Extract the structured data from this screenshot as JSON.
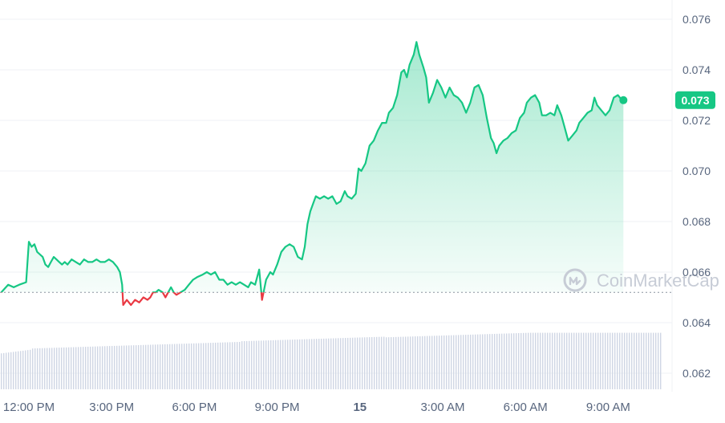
{
  "watermark": {
    "text": "CoinMarketCap",
    "icon": "coinmarketcap-logo-icon"
  },
  "current_price_label": "0.073",
  "colors": {
    "up": "#16c784",
    "down": "#ea3943",
    "grid": "#eff2f5",
    "axis_text": "#58667e",
    "volume": "#cfd6e4",
    "baseline": "#8a939f",
    "watermark": "#c7ccd6"
  },
  "chart_data": {
    "type": "area",
    "y_axis": {
      "ticks": [
        0.062,
        0.064,
        0.066,
        0.068,
        0.07,
        0.072,
        0.074,
        0.076
      ],
      "tick_labels": [
        "0.062",
        "0.064",
        "0.066",
        "0.068",
        "0.070",
        "0.072",
        "0.074",
        "0.076"
      ],
      "range": [
        0.0618,
        0.0772
      ],
      "position": "right"
    },
    "x_axis": {
      "range": [
        0,
        22.3
      ],
      "units": "hours since 12:00 PM",
      "ticks": [
        {
          "h": 0,
          "label": "12:00 PM",
          "bold": false
        },
        {
          "h": 3,
          "label": "3:00 PM",
          "bold": false
        },
        {
          "h": 6,
          "label": "6:00 PM",
          "bold": false
        },
        {
          "h": 9,
          "label": "9:00 PM",
          "bold": false
        },
        {
          "h": 12,
          "label": "15",
          "bold": true
        },
        {
          "h": 15,
          "label": "3:00 AM",
          "bold": false
        },
        {
          "h": 18,
          "label": "6:00 AM",
          "bold": false
        },
        {
          "h": 21,
          "label": "9:00 AM",
          "bold": false
        }
      ]
    },
    "baseline": 0.0652,
    "grid": true,
    "last_price": 0.0728,
    "series": [
      {
        "values": [
          [
            -1.0,
            0.0652
          ],
          [
            -0.75,
            0.0655
          ],
          [
            -0.55,
            0.0654
          ],
          [
            -0.35,
            0.0655
          ],
          [
            -0.1,
            0.0656
          ],
          [
            0.0,
            0.0672
          ],
          [
            0.1,
            0.067
          ],
          [
            0.2,
            0.0671
          ],
          [
            0.3,
            0.0668
          ],
          [
            0.4,
            0.0667
          ],
          [
            0.5,
            0.0666
          ],
          [
            0.6,
            0.0663
          ],
          [
            0.7,
            0.0662
          ],
          [
            0.8,
            0.0664
          ],
          [
            0.9,
            0.0666
          ],
          [
            1.0,
            0.0665
          ],
          [
            1.1,
            0.0664
          ],
          [
            1.2,
            0.0663
          ],
          [
            1.3,
            0.0664
          ],
          [
            1.4,
            0.0663
          ],
          [
            1.55,
            0.0665
          ],
          [
            1.7,
            0.0664
          ],
          [
            1.85,
            0.0663
          ],
          [
            2.0,
            0.0665
          ],
          [
            2.15,
            0.0664
          ],
          [
            2.3,
            0.0664
          ],
          [
            2.45,
            0.0665
          ],
          [
            2.6,
            0.0664
          ],
          [
            2.75,
            0.0664
          ],
          [
            2.9,
            0.0665
          ],
          [
            3.05,
            0.0664
          ],
          [
            3.2,
            0.0662
          ],
          [
            3.3,
            0.066
          ],
          [
            3.38,
            0.0655
          ],
          [
            3.42,
            0.0647
          ],
          [
            3.55,
            0.0649
          ],
          [
            3.7,
            0.0647
          ],
          [
            3.85,
            0.0649
          ],
          [
            4.0,
            0.0648
          ],
          [
            4.15,
            0.065
          ],
          [
            4.3,
            0.0649
          ],
          [
            4.4,
            0.065
          ],
          [
            4.5,
            0.0652
          ],
          [
            4.6,
            0.0652
          ],
          [
            4.7,
            0.0653
          ],
          [
            4.85,
            0.0652
          ],
          [
            4.95,
            0.065
          ],
          [
            5.0,
            0.0651
          ],
          [
            5.15,
            0.0654
          ],
          [
            5.25,
            0.0652
          ],
          [
            5.35,
            0.0651
          ],
          [
            5.5,
            0.0652
          ],
          [
            5.65,
            0.0653
          ],
          [
            5.8,
            0.0655
          ],
          [
            5.95,
            0.0657
          ],
          [
            6.1,
            0.0658
          ],
          [
            6.3,
            0.0659
          ],
          [
            6.45,
            0.066
          ],
          [
            6.6,
            0.0659
          ],
          [
            6.75,
            0.066
          ],
          [
            6.9,
            0.0657
          ],
          [
            7.05,
            0.0657
          ],
          [
            7.2,
            0.0655
          ],
          [
            7.35,
            0.0656
          ],
          [
            7.5,
            0.0655
          ],
          [
            7.65,
            0.0656
          ],
          [
            7.8,
            0.0655
          ],
          [
            7.95,
            0.0654
          ],
          [
            8.05,
            0.0656
          ],
          [
            8.2,
            0.0655
          ],
          [
            8.35,
            0.0661
          ],
          [
            8.45,
            0.0649
          ],
          [
            8.6,
            0.0657
          ],
          [
            8.75,
            0.066
          ],
          [
            8.85,
            0.0659
          ],
          [
            9.0,
            0.0663
          ],
          [
            9.15,
            0.0668
          ],
          [
            9.3,
            0.067
          ],
          [
            9.45,
            0.0671
          ],
          [
            9.6,
            0.067
          ],
          [
            9.75,
            0.0666
          ],
          [
            9.9,
            0.0665
          ],
          [
            10.0,
            0.067
          ],
          [
            10.1,
            0.0679
          ],
          [
            10.2,
            0.0684
          ],
          [
            10.3,
            0.0687
          ],
          [
            10.4,
            0.069
          ],
          [
            10.55,
            0.0689
          ],
          [
            10.7,
            0.069
          ],
          [
            10.85,
            0.0689
          ],
          [
            11.0,
            0.069
          ],
          [
            11.15,
            0.0687
          ],
          [
            11.3,
            0.0688
          ],
          [
            11.45,
            0.0692
          ],
          [
            11.55,
            0.069
          ],
          [
            11.7,
            0.0689
          ],
          [
            11.85,
            0.0691
          ],
          [
            11.95,
            0.0701
          ],
          [
            12.05,
            0.07
          ],
          [
            12.2,
            0.0703
          ],
          [
            12.35,
            0.071
          ],
          [
            12.5,
            0.0712
          ],
          [
            12.65,
            0.0716
          ],
          [
            12.8,
            0.0719
          ],
          [
            12.95,
            0.0719
          ],
          [
            13.05,
            0.0723
          ],
          [
            13.2,
            0.0725
          ],
          [
            13.35,
            0.073
          ],
          [
            13.5,
            0.0739
          ],
          [
            13.6,
            0.074
          ],
          [
            13.7,
            0.0737
          ],
          [
            13.8,
            0.0742
          ],
          [
            13.95,
            0.0746
          ],
          [
            14.05,
            0.0751
          ],
          [
            14.15,
            0.0746
          ],
          [
            14.3,
            0.0741
          ],
          [
            14.4,
            0.0737
          ],
          [
            14.5,
            0.0727
          ],
          [
            14.65,
            0.0731
          ],
          [
            14.8,
            0.0736
          ],
          [
            14.95,
            0.0733
          ],
          [
            15.1,
            0.0729
          ],
          [
            15.25,
            0.0733
          ],
          [
            15.4,
            0.073
          ],
          [
            15.55,
            0.0729
          ],
          [
            15.7,
            0.0727
          ],
          [
            15.85,
            0.0723
          ],
          [
            16.0,
            0.0727
          ],
          [
            16.15,
            0.0733
          ],
          [
            16.3,
            0.0734
          ],
          [
            16.45,
            0.073
          ],
          [
            16.6,
            0.0721
          ],
          [
            16.75,
            0.0713
          ],
          [
            16.85,
            0.0711
          ],
          [
            16.95,
            0.0707
          ],
          [
            17.05,
            0.071
          ],
          [
            17.2,
            0.0712
          ],
          [
            17.35,
            0.0713
          ],
          [
            17.5,
            0.0715
          ],
          [
            17.65,
            0.0716
          ],
          [
            17.8,
            0.0721
          ],
          [
            17.95,
            0.0723
          ],
          [
            18.05,
            0.0727
          ],
          [
            18.2,
            0.0729
          ],
          [
            18.35,
            0.073
          ],
          [
            18.5,
            0.0727
          ],
          [
            18.6,
            0.0722
          ],
          [
            18.75,
            0.0722
          ],
          [
            18.9,
            0.0723
          ],
          [
            19.05,
            0.0722
          ],
          [
            19.15,
            0.0726
          ],
          [
            19.3,
            0.0722
          ],
          [
            19.4,
            0.0718
          ],
          [
            19.55,
            0.0712
          ],
          [
            19.7,
            0.0714
          ],
          [
            19.85,
            0.0716
          ],
          [
            19.95,
            0.0719
          ],
          [
            20.1,
            0.0721
          ],
          [
            20.25,
            0.0723
          ],
          [
            20.4,
            0.0724
          ],
          [
            20.5,
            0.0729
          ],
          [
            20.6,
            0.0726
          ],
          [
            20.75,
            0.0724
          ],
          [
            20.9,
            0.0722
          ],
          [
            21.05,
            0.0724
          ],
          [
            21.2,
            0.0729
          ],
          [
            21.35,
            0.073
          ],
          [
            21.5,
            0.0728
          ],
          [
            21.55,
            0.0728
          ]
        ]
      }
    ],
    "volume": {
      "note": "relative volume bars along the bottom",
      "start_level": 0.62,
      "end_level": 0.88
    }
  }
}
